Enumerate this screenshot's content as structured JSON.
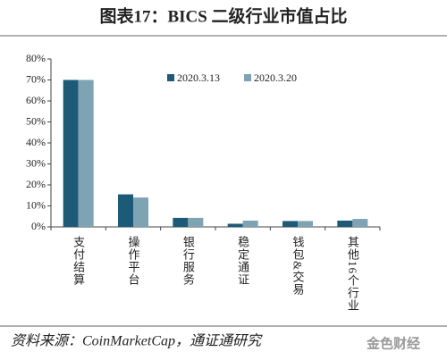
{
  "chart_data": {
    "type": "bar",
    "title": "图表17：BICS 二级行业市值占比",
    "categories": [
      "支付结算",
      "操作平台",
      "银行服务",
      "稳定通证",
      "钱包&交易",
      "其他16个行业"
    ],
    "series": [
      {
        "name": "2020.3.13",
        "color": "#1d5a78",
        "values": [
          70,
          15.5,
          4.3,
          1.5,
          2.8,
          3
        ]
      },
      {
        "name": "2020.3.20",
        "color": "#7ea3b2",
        "values": [
          70,
          14,
          4.3,
          3,
          2.8,
          3.8
        ]
      }
    ],
    "ylim": [
      0,
      80
    ],
    "yticks": [
      {
        "value": 0,
        "label": "0%"
      },
      {
        "value": 10,
        "label": "10%"
      },
      {
        "value": 20,
        "label": "20%"
      },
      {
        "value": 30,
        "label": "30%"
      },
      {
        "value": 40,
        "label": "40%"
      },
      {
        "value": 50,
        "label": "50%"
      },
      {
        "value": 60,
        "label": "60%"
      },
      {
        "value": 70,
        "label": "70%"
      },
      {
        "value": 80,
        "label": "80%"
      }
    ],
    "source": "资料来源：CoinMarketCap，通证通研究",
    "watermark": "金色财经"
  }
}
